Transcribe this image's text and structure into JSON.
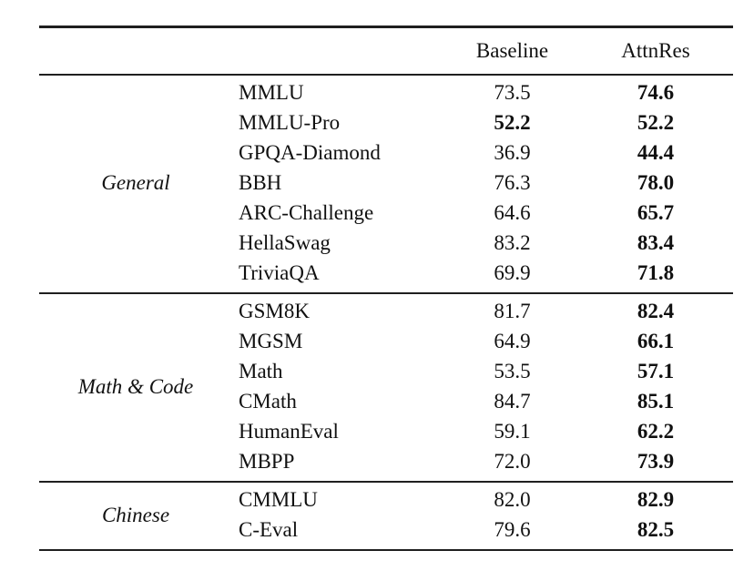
{
  "styles": {
    "background": "#ffffff",
    "text_color": "#111111",
    "rule_color": "#1f1f1f"
  },
  "table": {
    "header": {
      "baseline": "Baseline",
      "attnres": "AttnRes"
    },
    "sections": [
      {
        "group": "General",
        "rows": [
          {
            "name": "MMLU",
            "baseline": "73.5",
            "baseline_bold": false,
            "attnres": "74.6",
            "attnres_bold": true
          },
          {
            "name": "MMLU-Pro",
            "baseline": "52.2",
            "baseline_bold": true,
            "attnres": "52.2",
            "attnres_bold": true
          },
          {
            "name": "GPQA-Diamond",
            "baseline": "36.9",
            "baseline_bold": false,
            "attnres": "44.4",
            "attnres_bold": true
          },
          {
            "name": "BBH",
            "baseline": "76.3",
            "baseline_bold": false,
            "attnres": "78.0",
            "attnres_bold": true
          },
          {
            "name": "ARC-Challenge",
            "baseline": "64.6",
            "baseline_bold": false,
            "attnres": "65.7",
            "attnres_bold": true
          },
          {
            "name": "HellaSwag",
            "baseline": "83.2",
            "baseline_bold": false,
            "attnres": "83.4",
            "attnres_bold": true
          },
          {
            "name": "TriviaQA",
            "baseline": "69.9",
            "baseline_bold": false,
            "attnres": "71.8",
            "attnres_bold": true
          }
        ]
      },
      {
        "group": "Math & Code",
        "rows": [
          {
            "name": "GSM8K",
            "baseline": "81.7",
            "baseline_bold": false,
            "attnres": "82.4",
            "attnres_bold": true
          },
          {
            "name": "MGSM",
            "baseline": "64.9",
            "baseline_bold": false,
            "attnres": "66.1",
            "attnres_bold": true
          },
          {
            "name": "Math",
            "baseline": "53.5",
            "baseline_bold": false,
            "attnres": "57.1",
            "attnres_bold": true
          },
          {
            "name": "CMath",
            "baseline": "84.7",
            "baseline_bold": false,
            "attnres": "85.1",
            "attnres_bold": true
          },
          {
            "name": "HumanEval",
            "baseline": "59.1",
            "baseline_bold": false,
            "attnres": "62.2",
            "attnres_bold": true
          },
          {
            "name": "MBPP",
            "baseline": "72.0",
            "baseline_bold": false,
            "attnres": "73.9",
            "attnres_bold": true
          }
        ]
      },
      {
        "group": "Chinese",
        "rows": [
          {
            "name": "CMMLU",
            "baseline": "82.0",
            "baseline_bold": false,
            "attnres": "82.9",
            "attnres_bold": true
          },
          {
            "name": "C-Eval",
            "baseline": "79.6",
            "baseline_bold": false,
            "attnres": "82.5",
            "attnres_bold": true
          }
        ]
      }
    ]
  }
}
